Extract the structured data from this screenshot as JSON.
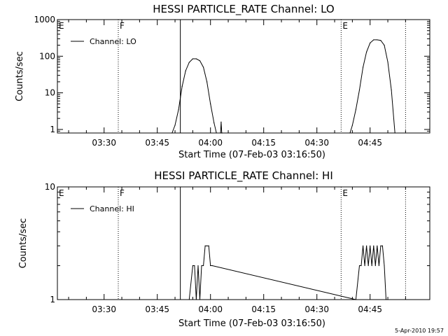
{
  "footer_timestamp": "5-Apr-2010 19:57",
  "colors": {
    "background": "#ffffff",
    "foreground": "#000000"
  },
  "chart_data": [
    {
      "type": "line",
      "title": "HESSI PARTICLE_RATE Channel: LO",
      "xlabel": "Start Time (07-Feb-03 03:16:50)",
      "ylabel": "Counts/sec",
      "yscale": "log",
      "ylim": [
        0.8,
        1000
      ],
      "yticks": [
        1,
        10,
        100,
        1000
      ],
      "ytick_labels": [
        "1",
        "10",
        "100",
        "1000"
      ],
      "xlim": [
        "03:16:50",
        "05:01:50"
      ],
      "xticks": [
        "03:30",
        "03:45",
        "04:00",
        "04:15",
        "04:30",
        "04:45"
      ],
      "grid": false,
      "legend": {
        "position": "top-left",
        "entries": [
          "Channel: LO"
        ]
      },
      "series": [
        {
          "name": "Channel: LO",
          "x": [
            "03:49:10",
            "03:50:00",
            "03:51:00",
            "03:52:00",
            "03:53:00",
            "03:54:00",
            "03:55:00",
            "03:56:00",
            "03:57:00",
            "03:58:00",
            "03:59:00",
            "04:00:00",
            "04:01:00",
            "04:01:40",
            "04:02:50",
            "04:03:00",
            "04:03:10",
            "04:03:20",
            "04:39:20",
            "04:40:00",
            "04:41:00",
            "04:42:00",
            "04:43:00",
            "04:44:00",
            "04:45:00",
            "04:46:00",
            "04:47:00",
            "04:48:00",
            "04:49:00",
            "04:50:00",
            "04:51:00",
            "04:52:00"
          ],
          "y": [
            0.8,
            1.3,
            3.5,
            15,
            40,
            68,
            85,
            85,
            75,
            50,
            20,
            5,
            1.5,
            0.8,
            0.8,
            1.6,
            0.8,
            0.8,
            0.8,
            1.3,
            3.5,
            12,
            50,
            130,
            230,
            280,
            280,
            270,
            200,
            70,
            12,
            0.8
          ]
        }
      ],
      "annotations": [
        {
          "label": "E",
          "time": "03:16:50",
          "style": "dotted"
        },
        {
          "label": "F",
          "time": "03:34:00",
          "style": "dotted"
        },
        {
          "label": "",
          "time": "03:51:30",
          "style": "solid"
        },
        {
          "label": "E",
          "time": "04:36:50",
          "style": "dotted"
        },
        {
          "label": "",
          "time": "04:55:00",
          "style": "dotted"
        }
      ]
    },
    {
      "type": "line",
      "title": "HESSI PARTICLE_RATE Channel: HI",
      "xlabel": "Start Time (07-Feb-03 03:16:50)",
      "ylabel": "Counts/sec",
      "yscale": "log",
      "ylim": [
        1,
        10
      ],
      "yticks": [
        1,
        10
      ],
      "ytick_labels": [
        "1",
        "10"
      ],
      "xlim": [
        "03:16:50",
        "05:01:50"
      ],
      "xticks": [
        "03:30",
        "03:45",
        "04:00",
        "04:15",
        "04:30",
        "04:45"
      ],
      "grid": false,
      "legend": {
        "position": "top-left",
        "entries": [
          "Channel: HI"
        ]
      },
      "series": [
        {
          "name": "Channel: HI",
          "x": [
            "03:54:00",
            "03:55:00",
            "03:55:30",
            "03:56:00",
            "03:56:30",
            "03:57:00",
            "03:57:30",
            "03:58:00",
            "03:58:30",
            "03:59:00",
            "03:59:30",
            "04:00:00",
            "04:00:30",
            "04:41:00",
            "04:42:00",
            "04:42:30",
            "04:43:00",
            "04:43:30",
            "04:44:00",
            "04:44:30",
            "04:45:00",
            "04:45:30",
            "04:46:00",
            "04:46:30",
            "04:47:00",
            "04:47:30",
            "04:48:00",
            "04:48:30",
            "04:49:00",
            "04:49:30",
            "04:50:00"
          ],
          "y": [
            1,
            2,
            2,
            1,
            2,
            1,
            2,
            2,
            3,
            3,
            3,
            2,
            2,
            1,
            2,
            2,
            3,
            2,
            3,
            2,
            3,
            2,
            3,
            2,
            3,
            2,
            3,
            3,
            2,
            1,
            1
          ]
        }
      ],
      "annotations": [
        {
          "label": "E",
          "time": "03:16:50",
          "style": "dotted"
        },
        {
          "label": "F",
          "time": "03:34:00",
          "style": "dotted"
        },
        {
          "label": "",
          "time": "03:51:30",
          "style": "solid"
        },
        {
          "label": "E",
          "time": "04:36:50",
          "style": "dotted"
        },
        {
          "label": "",
          "time": "04:55:00",
          "style": "dotted"
        }
      ]
    }
  ]
}
